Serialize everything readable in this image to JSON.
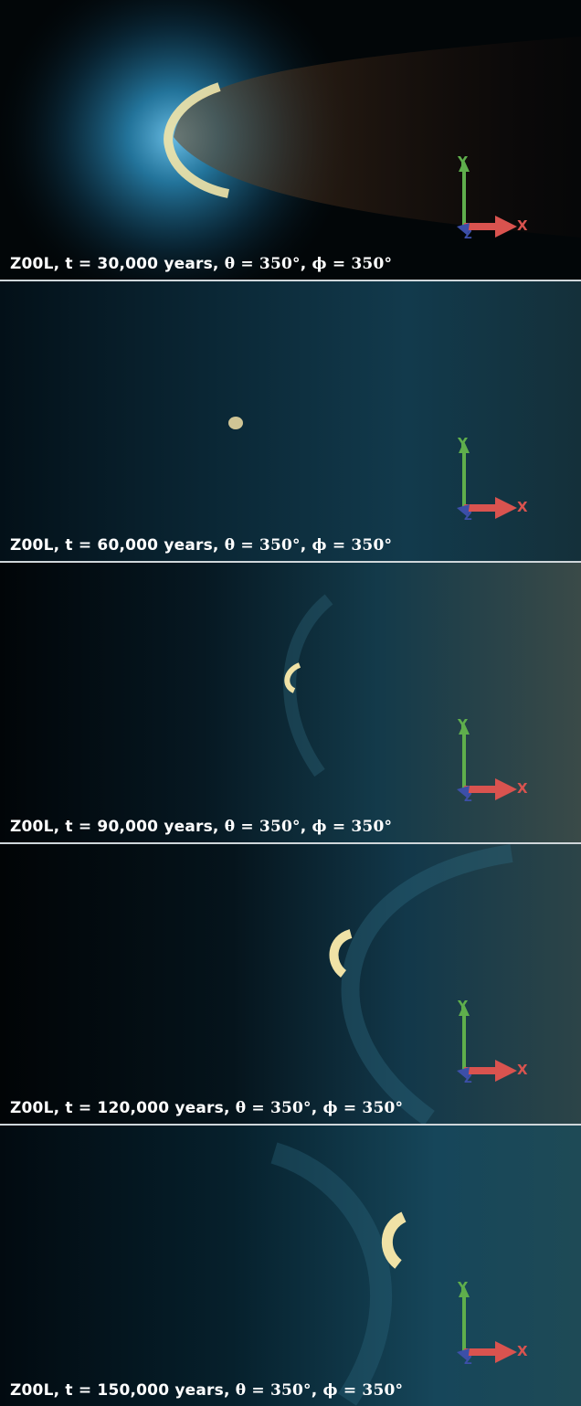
{
  "frames": [
    {
      "model": "Z00L",
      "time_text": "t = 30,000 years",
      "theta_text": "θ = 350°",
      "phi_text": "ϕ = 350°"
    },
    {
      "model": "Z00L",
      "time_text": "t = 60,000 years",
      "theta_text": "θ = 350°",
      "phi_text": "ϕ = 350°"
    },
    {
      "model": "Z00L",
      "time_text": "t = 90,000 years",
      "theta_text": "θ = 350°",
      "phi_text": "ϕ = 350°"
    },
    {
      "model": "Z00L",
      "time_text": "t = 120,000 years",
      "theta_text": "θ = 350°",
      "phi_text": "ϕ = 350°"
    },
    {
      "model": "Z00L",
      "time_text": "t = 150,000 years",
      "theta_text": "θ = 350°",
      "phi_text": "ϕ = 350°"
    }
  ],
  "axes": {
    "x_label": "X",
    "y_label": "Y",
    "z_label": "Z"
  },
  "colors": {
    "x_axis": "#d9534f",
    "y_axis": "#5fae4c",
    "z_axis": "#3c4fa8",
    "shock_glow": "#e8d9a0",
    "nebula_blue": "#2a6a8a"
  }
}
